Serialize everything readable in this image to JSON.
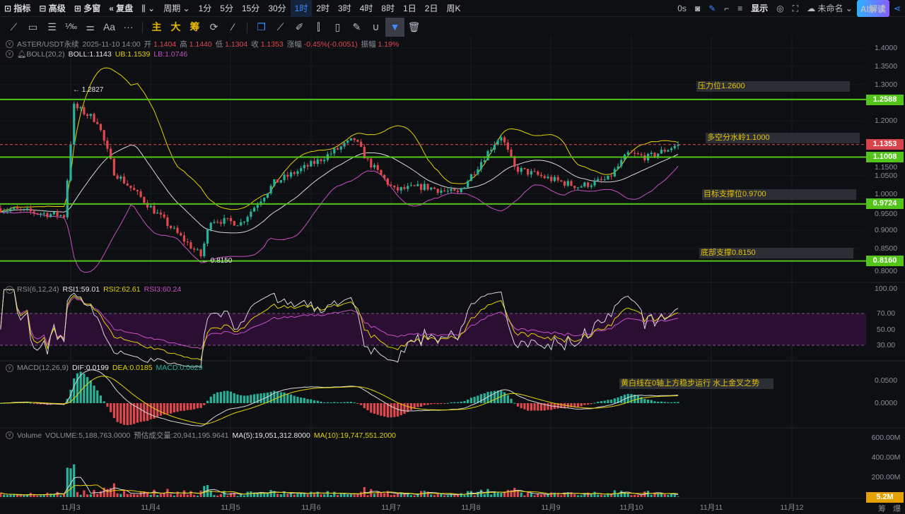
{
  "toolbar": {
    "items": [
      {
        "icon": "indicator-icon",
        "label": "指标"
      },
      {
        "icon": "advanced-icon",
        "label": "高级"
      },
      {
        "icon": "multi-window-icon",
        "label": "多窗"
      },
      {
        "icon": "replay-icon",
        "label": "复盘"
      },
      {
        "icon": "chart-type-icon",
        "label": "⌄"
      },
      {
        "icon": "",
        "label": "周期 ⌄"
      }
    ],
    "periods": [
      "1分",
      "5分",
      "15分",
      "30分",
      "1时",
      "2时",
      "3时",
      "4时",
      "8时",
      "1日",
      "2日",
      "周K"
    ],
    "active_period": "1时",
    "right": {
      "countdown": "0s",
      "display": "显示",
      "layout_name": "未命名 ⌄",
      "ai": "AI解读"
    }
  },
  "drawing_tools": {
    "text_tool": "Aa",
    "more": "···",
    "main": "主",
    "big": "大",
    "chips": "筹"
  },
  "symbol": {
    "name": "ASTER/USDT永续",
    "time": "2025-11-10 14:00",
    "open_label": "开",
    "open": "1.1404",
    "high_label": "高",
    "high": "1.1440",
    "low_label": "低",
    "low": "1.1304",
    "close_label": "收",
    "close": "1.1353",
    "change_label": "涨幅",
    "change": "-0.45%(-0.0051)",
    "amp_label": "振幅",
    "amp": "1.19%"
  },
  "boll": {
    "label": "BOLL(20,2)",
    "mid": "BOLL:1.1143",
    "ub": "UB:1.1539",
    "lb": "LB:1.0746"
  },
  "rsi": {
    "label": "RSI(6,12,24)",
    "r1": "RSI1:59.01",
    "r2": "RSI2:62.61",
    "r3": "RSI3:60.24",
    "axis": [
      "100.00",
      "70.00",
      "50.00",
      "30.00"
    ]
  },
  "macd": {
    "label": "MACD(12,26,9)",
    "dif": "DIF:0.0199",
    "dea": "DEA:0.0185",
    "macd": "MACD:0.0029",
    "axis": [
      "0.0500",
      "0.0000"
    ],
    "note": "黄白线在0轴上方稳步运行 水上金叉之势"
  },
  "volume": {
    "label": "Volume",
    "vol": "VOLUME:5,188,763.0000",
    "est": "预估成交量:20,941,195.9641",
    "ma5": "MA(5):19,051,312.8000",
    "ma10": "MA(10):19,747,551.2000",
    "axis": [
      "600.00M",
      "400.00M",
      "200.00M"
    ],
    "last_tag": "5.2M"
  },
  "price_axis": [
    "1.4000",
    "1.3500",
    "1.3000",
    "1.2000",
    "1.1500",
    "1.0500",
    "1.0000",
    "0.9500",
    "0.9000",
    "0.8500",
    "0.8000"
  ],
  "levels": [
    {
      "price": 1.2588,
      "label": "1.2588",
      "note": "压力位1.2600"
    },
    {
      "price": 1.1008,
      "label": "1.1008",
      "note": "多空分水岭1.1000"
    },
    {
      "price": 0.9724,
      "label": "0.9724",
      "note": "目标支撑位0.9700"
    },
    {
      "price": 0.816,
      "label": "0.8160",
      "note": "底部支撑0.8150"
    }
  ],
  "last_price": {
    "value": 1.1353,
    "label": "1.1353"
  },
  "extremes": {
    "high": "← 1.2827",
    "low": "← 0.8150"
  },
  "dates": [
    "11月3",
    "11月4",
    "11月5",
    "11月6",
    "11月7",
    "11月8",
    "11月9",
    "11月10",
    "11月11",
    "11月12"
  ],
  "bottom_right": {
    "chips": "筹",
    "burst": "爆"
  },
  "colors": {
    "up": "#27b39a",
    "down": "#e0484e",
    "level": "#52c41a",
    "boll_ub": "#e5d200",
    "boll_mid": "#d8d8d8",
    "boll_lb": "#c94fc5",
    "rsi_band": "#2a0f33"
  },
  "price_path": [
    [
      "11-02 03:00",
      0.96
    ],
    [
      "11-02 22:00",
      0.94
    ],
    [
      "11-03 01:00",
      1.24
    ],
    [
      "11-03 08:00",
      1.2
    ],
    [
      "11-03 13:00",
      1.06
    ],
    [
      "11-03 21:00",
      0.99
    ],
    [
      "11-04 08:00",
      0.89
    ],
    [
      "11-04 15:00",
      0.83
    ],
    [
      "11-04 18:00",
      0.93
    ],
    [
      "11-05 03:00",
      0.92
    ],
    [
      "11-05 13:00",
      1.03
    ],
    [
      "11-06 02:00",
      1.09
    ],
    [
      "11-06 13:00",
      1.15
    ],
    [
      "11-06 17:00",
      1.09
    ],
    [
      "11-07 01:00",
      1.01
    ],
    [
      "11-07 10:00",
      1.02
    ],
    [
      "11-07 20:00",
      1.0
    ],
    [
      "11-08 07:00",
      1.14
    ],
    [
      "11-08 09:00",
      1.16
    ],
    [
      "11-08 13:00",
      1.07
    ],
    [
      "11-09 00:00",
      1.04
    ],
    [
      "11-09 08:00",
      1.02
    ],
    [
      "11-09 17:00",
      1.04
    ],
    [
      "11-09 23:00",
      1.11
    ],
    [
      "11-10 05:00",
      1.1
    ],
    [
      "11-10 14:00",
      1.1353
    ]
  ]
}
